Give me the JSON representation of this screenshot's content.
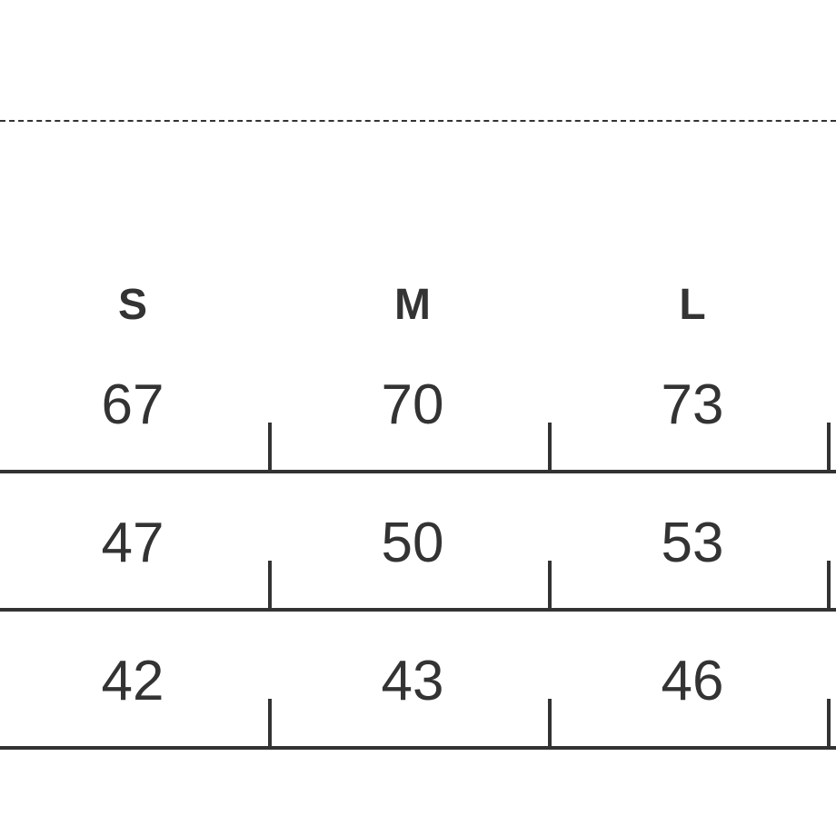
{
  "sizes": [
    "S",
    "M",
    "L"
  ],
  "rows": [
    [
      "67",
      "70",
      "73"
    ],
    [
      "47",
      "50",
      "53"
    ],
    [
      "42",
      "43",
      "46"
    ]
  ]
}
